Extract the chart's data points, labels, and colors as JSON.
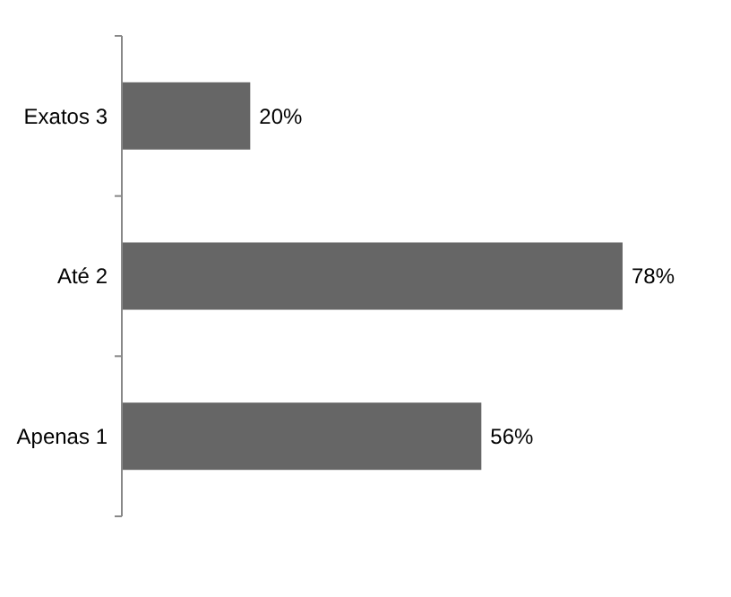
{
  "chart_data": {
    "type": "bar",
    "orientation": "horizontal",
    "categories": [
      "Exatos 3",
      "Até 2",
      "Apenas 1"
    ],
    "values": [
      20,
      78,
      56
    ],
    "color": "#666666",
    "value_labels": [
      "20%",
      "78%",
      "56%"
    ]
  }
}
